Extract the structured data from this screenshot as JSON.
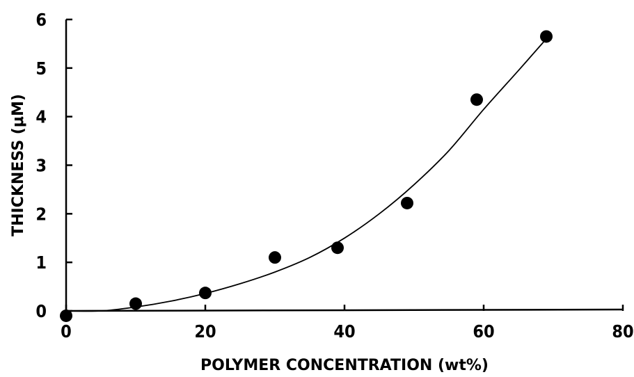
{
  "chart_data": {
    "type": "scatter",
    "xlabel": "POLYMER CONCENTRATION (wt%)",
    "ylabel": "THICKNESS (μM)",
    "xlim": [
      0,
      80
    ],
    "ylim": [
      0,
      6
    ],
    "xticks": [
      "0",
      "20",
      "40",
      "60",
      "80"
    ],
    "yticks": [
      "0",
      "1",
      "2",
      "3",
      "4",
      "5",
      "6"
    ],
    "grid": false,
    "series": [
      {
        "points": [
          {
            "x": 0,
            "y": -0.1
          },
          {
            "x": 10,
            "y": 0.15
          },
          {
            "x": 20,
            "y": 0.37
          },
          {
            "x": 30,
            "y": 1.1
          },
          {
            "x": 39,
            "y": 1.3
          },
          {
            "x": 49,
            "y": 2.22
          },
          {
            "x": 59,
            "y": 4.35
          },
          {
            "x": 69,
            "y": 5.65
          }
        ]
      }
    ],
    "fit_curve": {
      "x": [
        0,
        5,
        10,
        15,
        20,
        25,
        30,
        35,
        40,
        45,
        50,
        55,
        60,
        65,
        69
      ],
      "y": [
        0,
        0,
        0.08,
        0.2,
        0.36,
        0.56,
        0.8,
        1.1,
        1.5,
        2.0,
        2.6,
        3.3,
        4.15,
        4.95,
        5.6
      ]
    }
  }
}
